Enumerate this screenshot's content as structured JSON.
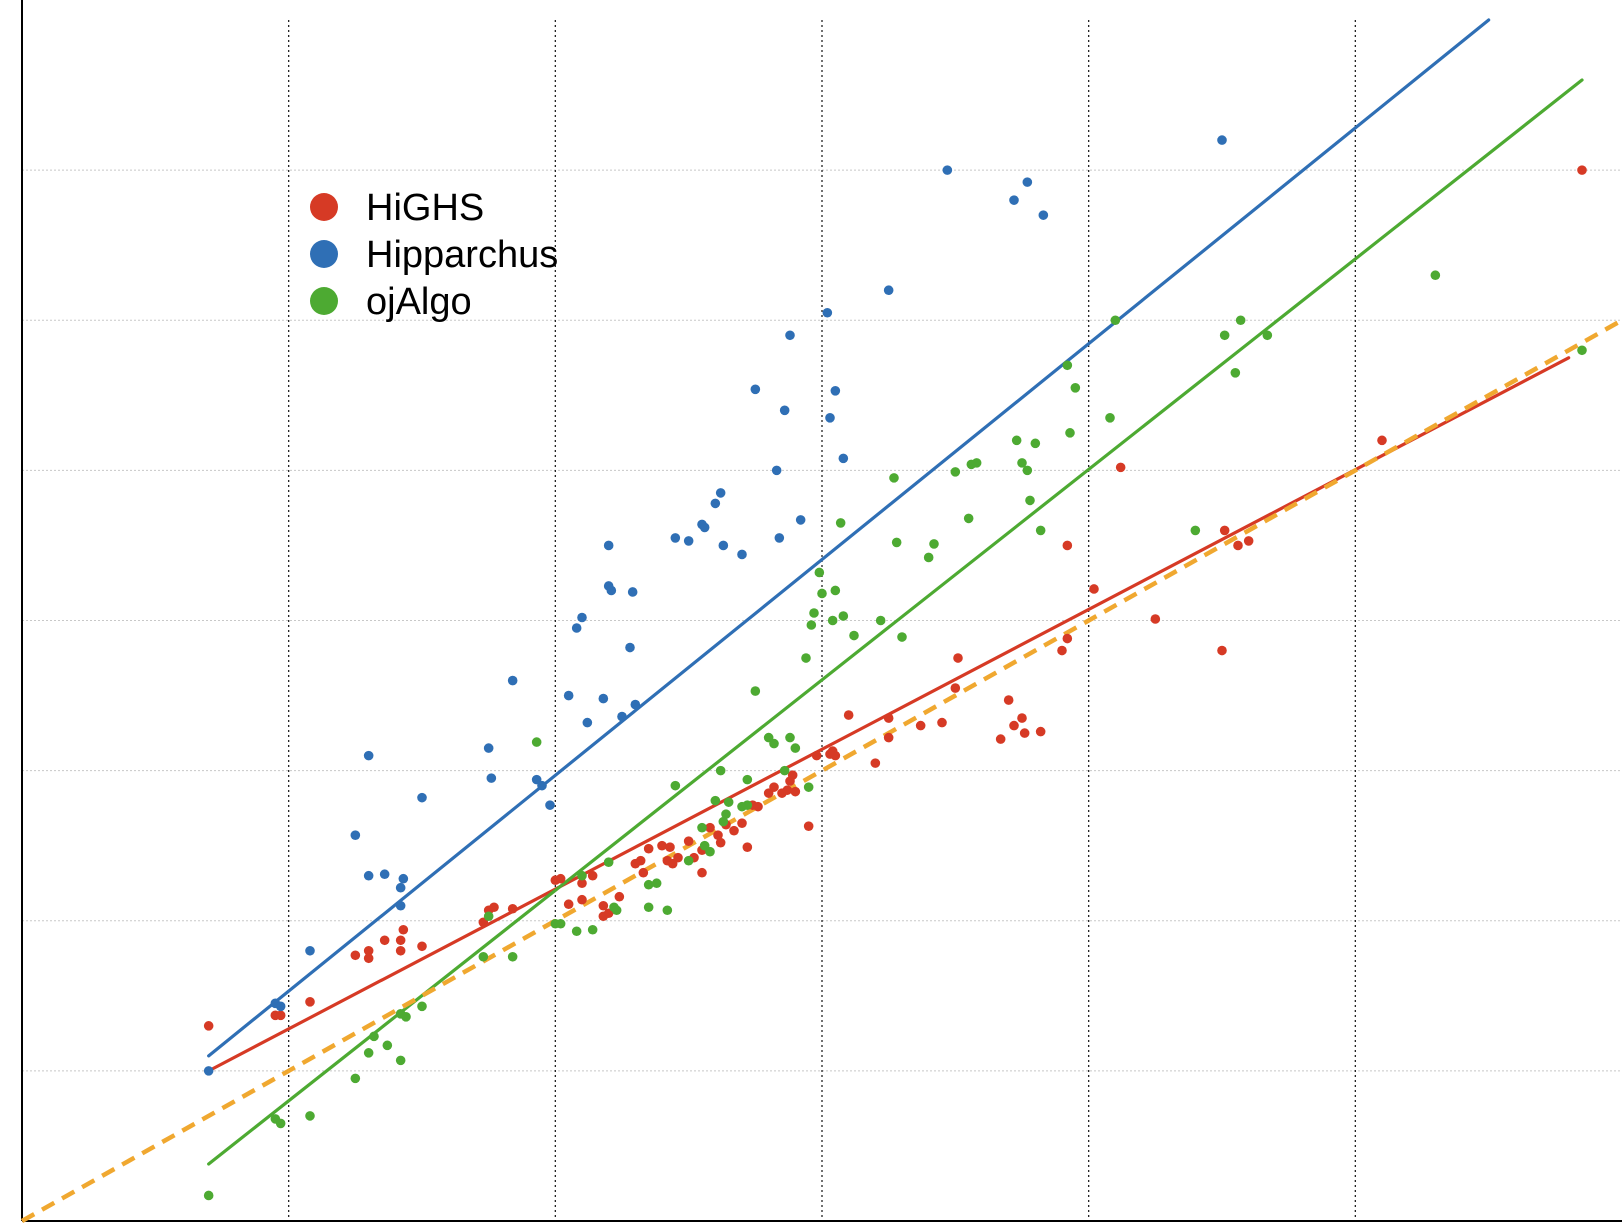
{
  "chart_data": {
    "type": "scatter",
    "title": "",
    "xlabel": "",
    "ylabel": "",
    "xlim": [
      0,
      6
    ],
    "ylim": [
      0,
      8
    ],
    "grid": {
      "x": "dotted-black",
      "y": "dotted-gray"
    },
    "legend_position": "top-left",
    "colors": {
      "HiGHS": "#d63a25",
      "Hipparchus": "#2f6fb5",
      "ojAlgo": "#4daa32",
      "reference": "#f0a830"
    },
    "series": [
      {
        "name": "HiGHS",
        "color": "#d63a25",
        "trend": [
          [
            0.7,
            1.0
          ],
          [
            5.8,
            5.75
          ]
        ],
        "points": [
          [
            0.7,
            1.3
          ],
          [
            0.95,
            1.37
          ],
          [
            0.97,
            1.37
          ],
          [
            1.08,
            1.46
          ],
          [
            1.25,
            1.77
          ],
          [
            1.3,
            1.8
          ],
          [
            1.3,
            1.75
          ],
          [
            1.36,
            1.87
          ],
          [
            1.42,
            1.87
          ],
          [
            1.42,
            1.8
          ],
          [
            1.43,
            1.94
          ],
          [
            1.5,
            1.83
          ],
          [
            1.73,
            1.99
          ],
          [
            1.75,
            2.07
          ],
          [
            1.77,
            2.09
          ],
          [
            1.84,
            2.08
          ],
          [
            2.0,
            2.27
          ],
          [
            2.02,
            2.28
          ],
          [
            2.05,
            2.11
          ],
          [
            2.1,
            2.25
          ],
          [
            2.1,
            2.14
          ],
          [
            2.14,
            2.3
          ],
          [
            2.18,
            2.1
          ],
          [
            2.18,
            2.03
          ],
          [
            2.2,
            2.05
          ],
          [
            2.24,
            2.16
          ],
          [
            2.3,
            2.38
          ],
          [
            2.32,
            2.4
          ],
          [
            2.33,
            2.32
          ],
          [
            2.35,
            2.48
          ],
          [
            2.4,
            2.5
          ],
          [
            2.42,
            2.4
          ],
          [
            2.43,
            2.49
          ],
          [
            2.44,
            2.38
          ],
          [
            2.46,
            2.42
          ],
          [
            2.5,
            2.53
          ],
          [
            2.52,
            2.42
          ],
          [
            2.55,
            2.32
          ],
          [
            2.55,
            2.47
          ],
          [
            2.58,
            2.62
          ],
          [
            2.61,
            2.57
          ],
          [
            2.62,
            2.52
          ],
          [
            2.64,
            2.64
          ],
          [
            2.67,
            2.6
          ],
          [
            2.7,
            2.65
          ],
          [
            2.72,
            2.49
          ],
          [
            2.74,
            2.77
          ],
          [
            2.76,
            2.76
          ],
          [
            2.8,
            2.85
          ],
          [
            2.82,
            2.89
          ],
          [
            2.85,
            2.85
          ],
          [
            2.87,
            2.87
          ],
          [
            2.88,
            2.93
          ],
          [
            2.89,
            2.97
          ],
          [
            2.9,
            2.86
          ],
          [
            2.95,
            2.63
          ],
          [
            2.98,
            3.1
          ],
          [
            3.03,
            3.11
          ],
          [
            3.04,
            3.13
          ],
          [
            3.05,
            3.1
          ],
          [
            3.1,
            3.37
          ],
          [
            3.2,
            3.05
          ],
          [
            3.25,
            3.22
          ],
          [
            3.25,
            3.35
          ],
          [
            3.37,
            3.3
          ],
          [
            3.45,
            3.32
          ],
          [
            3.5,
            3.55
          ],
          [
            3.51,
            3.75
          ],
          [
            3.67,
            3.21
          ],
          [
            3.7,
            3.47
          ],
          [
            3.72,
            3.3
          ],
          [
            3.75,
            3.35
          ],
          [
            3.76,
            3.25
          ],
          [
            3.82,
            3.26
          ],
          [
            3.9,
            3.8
          ],
          [
            3.92,
            3.88
          ],
          [
            3.92,
            4.5
          ],
          [
            4.02,
            4.21
          ],
          [
            4.12,
            5.02
          ],
          [
            4.25,
            4.01
          ],
          [
            4.5,
            3.8
          ],
          [
            4.51,
            4.6
          ],
          [
            4.56,
            4.5
          ],
          [
            4.6,
            4.53
          ],
          [
            5.1,
            5.2
          ],
          [
            5.85,
            7.0
          ]
        ]
      },
      {
        "name": "Hipparchus",
        "color": "#2f6fb5",
        "trend": [
          [
            0.7,
            1.1
          ],
          [
            5.5,
            8.0
          ]
        ],
        "points": [
          [
            0.7,
            1.0
          ],
          [
            0.95,
            1.45
          ],
          [
            0.97,
            1.43
          ],
          [
            1.08,
            1.8
          ],
          [
            1.25,
            2.57
          ],
          [
            1.3,
            2.3
          ],
          [
            1.3,
            3.1
          ],
          [
            1.36,
            2.31
          ],
          [
            1.42,
            2.22
          ],
          [
            1.42,
            2.1
          ],
          [
            1.43,
            2.28
          ],
          [
            1.5,
            2.82
          ],
          [
            1.75,
            3.15
          ],
          [
            1.76,
            2.95
          ],
          [
            1.84,
            3.6
          ],
          [
            1.93,
            2.94
          ],
          [
            1.95,
            2.9
          ],
          [
            1.98,
            2.77
          ],
          [
            2.05,
            3.5
          ],
          [
            2.08,
            3.95
          ],
          [
            2.1,
            4.02
          ],
          [
            2.12,
            3.32
          ],
          [
            2.18,
            3.48
          ],
          [
            2.2,
            4.23
          ],
          [
            2.2,
            4.5
          ],
          [
            2.21,
            4.2
          ],
          [
            2.25,
            3.36
          ],
          [
            2.28,
            3.82
          ],
          [
            2.29,
            4.19
          ],
          [
            2.3,
            3.44
          ],
          [
            2.45,
            4.55
          ],
          [
            2.5,
            4.53
          ],
          [
            2.55,
            4.64
          ],
          [
            2.56,
            4.62
          ],
          [
            2.6,
            4.78
          ],
          [
            2.62,
            4.85
          ],
          [
            2.63,
            4.5
          ],
          [
            2.7,
            4.44
          ],
          [
            2.75,
            5.54
          ],
          [
            2.83,
            5.0
          ],
          [
            2.84,
            4.55
          ],
          [
            2.86,
            5.4
          ],
          [
            2.88,
            5.9
          ],
          [
            2.92,
            4.67
          ],
          [
            3.02,
            6.05
          ],
          [
            3.03,
            5.35
          ],
          [
            3.05,
            5.53
          ],
          [
            3.08,
            5.08
          ],
          [
            3.25,
            6.2
          ],
          [
            3.47,
            7.0
          ],
          [
            3.72,
            6.8
          ],
          [
            3.77,
            6.92
          ],
          [
            3.83,
            6.7
          ],
          [
            4.5,
            7.2
          ]
        ]
      },
      {
        "name": "ojAlgo",
        "color": "#4daa32",
        "trend": [
          [
            0.7,
            0.38
          ],
          [
            5.85,
            7.6
          ]
        ],
        "points": [
          [
            0.7,
            0.17
          ],
          [
            0.95,
            0.68
          ],
          [
            0.97,
            0.65
          ],
          [
            1.08,
            0.7
          ],
          [
            1.25,
            0.95
          ],
          [
            1.3,
            1.12
          ],
          [
            1.32,
            1.23
          ],
          [
            1.37,
            1.17
          ],
          [
            1.42,
            1.07
          ],
          [
            1.42,
            1.38
          ],
          [
            1.44,
            1.36
          ],
          [
            1.5,
            1.43
          ],
          [
            1.73,
            1.76
          ],
          [
            1.75,
            2.03
          ],
          [
            1.84,
            1.76
          ],
          [
            1.93,
            3.19
          ],
          [
            2.0,
            1.98
          ],
          [
            2.02,
            1.98
          ],
          [
            2.08,
            1.93
          ],
          [
            2.1,
            2.3
          ],
          [
            2.14,
            1.94
          ],
          [
            2.2,
            2.39
          ],
          [
            2.22,
            2.09
          ],
          [
            2.23,
            2.07
          ],
          [
            2.35,
            2.09
          ],
          [
            2.35,
            2.24
          ],
          [
            2.38,
            2.25
          ],
          [
            2.42,
            2.07
          ],
          [
            2.45,
            2.9
          ],
          [
            2.5,
            2.4
          ],
          [
            2.55,
            2.62
          ],
          [
            2.56,
            2.5
          ],
          [
            2.58,
            2.46
          ],
          [
            2.6,
            2.8
          ],
          [
            2.62,
            3.0
          ],
          [
            2.63,
            2.66
          ],
          [
            2.64,
            2.71
          ],
          [
            2.65,
            2.79
          ],
          [
            2.7,
            2.76
          ],
          [
            2.72,
            2.77
          ],
          [
            2.72,
            2.94
          ],
          [
            2.75,
            3.53
          ],
          [
            2.8,
            3.22
          ],
          [
            2.82,
            3.18
          ],
          [
            2.86,
            3.0
          ],
          [
            2.88,
            3.22
          ],
          [
            2.9,
            3.15
          ],
          [
            2.94,
            3.75
          ],
          [
            2.95,
            2.89
          ],
          [
            2.96,
            3.97
          ],
          [
            2.97,
            4.05
          ],
          [
            2.99,
            4.32
          ],
          [
            3.0,
            4.18
          ],
          [
            3.04,
            4.0
          ],
          [
            3.05,
            4.2
          ],
          [
            3.07,
            4.65
          ],
          [
            3.08,
            4.03
          ],
          [
            3.12,
            3.9
          ],
          [
            3.22,
            4.0
          ],
          [
            3.27,
            4.95
          ],
          [
            3.28,
            4.52
          ],
          [
            3.3,
            3.89
          ],
          [
            3.4,
            4.42
          ],
          [
            3.42,
            4.51
          ],
          [
            3.5,
            4.99
          ],
          [
            3.55,
            4.68
          ],
          [
            3.56,
            5.04
          ],
          [
            3.58,
            5.05
          ],
          [
            3.73,
            5.2
          ],
          [
            3.75,
            5.05
          ],
          [
            3.77,
            5.0
          ],
          [
            3.78,
            4.8
          ],
          [
            3.8,
            5.18
          ],
          [
            3.82,
            4.6
          ],
          [
            3.92,
            5.7
          ],
          [
            3.93,
            5.25
          ],
          [
            3.95,
            5.55
          ],
          [
            4.08,
            5.35
          ],
          [
            4.1,
            6.0
          ],
          [
            4.4,
            4.6
          ],
          [
            4.51,
            5.9
          ],
          [
            4.55,
            5.65
          ],
          [
            4.57,
            6.0
          ],
          [
            4.67,
            5.9
          ],
          [
            5.3,
            6.3
          ],
          [
            5.85,
            5.8
          ]
        ]
      }
    ],
    "reference_line": {
      "style": "dashed",
      "color": "#f0a830",
      "points": [
        [
          0.0,
          0.0
        ],
        [
          6.0,
          6.0
        ]
      ]
    }
  }
}
